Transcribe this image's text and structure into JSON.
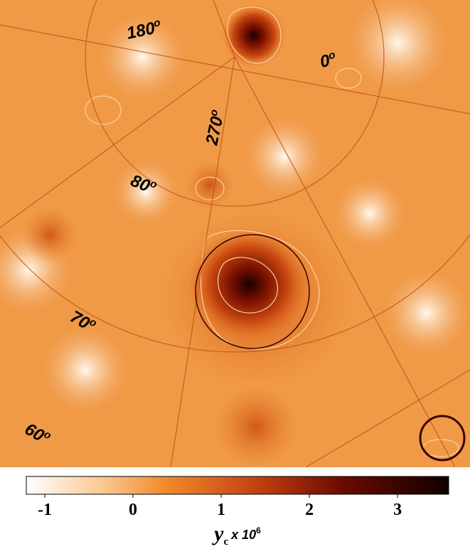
{
  "map": {
    "grid_labels": [
      "180",
      "0",
      "270",
      "80",
      "70",
      "60"
    ],
    "degree_symbol": "o"
  },
  "colorbar": {
    "lim": [
      -1.21,
      3.58
    ],
    "ticks": [
      -1,
      0,
      1,
      2,
      3
    ],
    "label": {
      "symbol": "y",
      "subscript": "c",
      "multiplier": "x 10",
      "exponent": "6"
    }
  }
}
